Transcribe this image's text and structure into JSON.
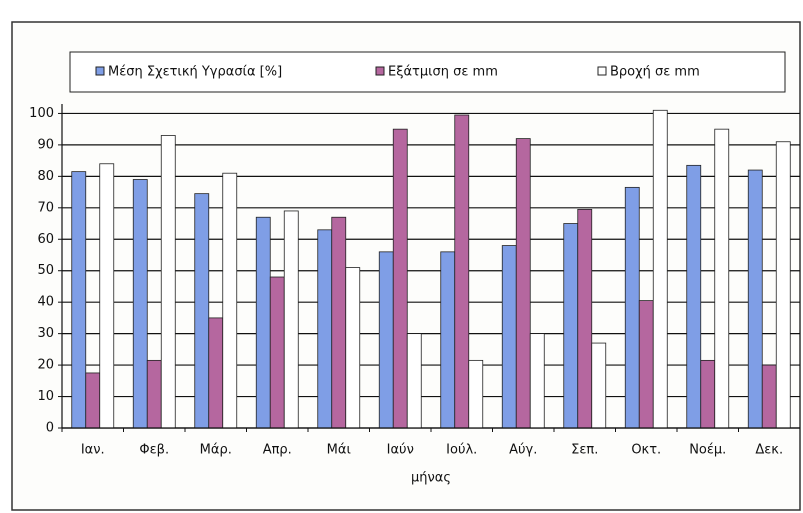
{
  "chart_data": {
    "type": "bar",
    "categories": [
      "Ιαν.",
      "Φεβ.",
      "Μάρ.",
      "Απρ.",
      "Μάι",
      "Ιαύν",
      "Ιούλ.",
      "Αύγ.",
      "Σεπ.",
      "Οκτ.",
      "Νοέμ.",
      "Δεκ."
    ],
    "series": [
      {
        "name": "Μέση Σχετική Υγρασία [%]",
        "color": "#7f9ee6",
        "values": [
          81.5,
          79,
          74.5,
          67,
          63,
          56,
          56,
          58,
          65,
          76.5,
          83.5,
          82
        ]
      },
      {
        "name": "Εξάτμιση σε mm",
        "color": "#b5679f",
        "values": [
          17.5,
          21.5,
          35,
          48,
          67,
          95,
          99.5,
          92,
          69.5,
          40.5,
          21.5,
          20
        ]
      },
      {
        "name": "Βροχή σε mm",
        "color": "#ffffff",
        "values": [
          84,
          93,
          81,
          69,
          51,
          30,
          21.5,
          30,
          27,
          101,
          95,
          91
        ]
      }
    ],
    "x_label": "μήνας",
    "ylim": [
      0,
      103
    ],
    "yticks": [
      0,
      10,
      20,
      30,
      40,
      50,
      60,
      70,
      80,
      90,
      100
    ],
    "grid": true,
    "legend": "top"
  }
}
